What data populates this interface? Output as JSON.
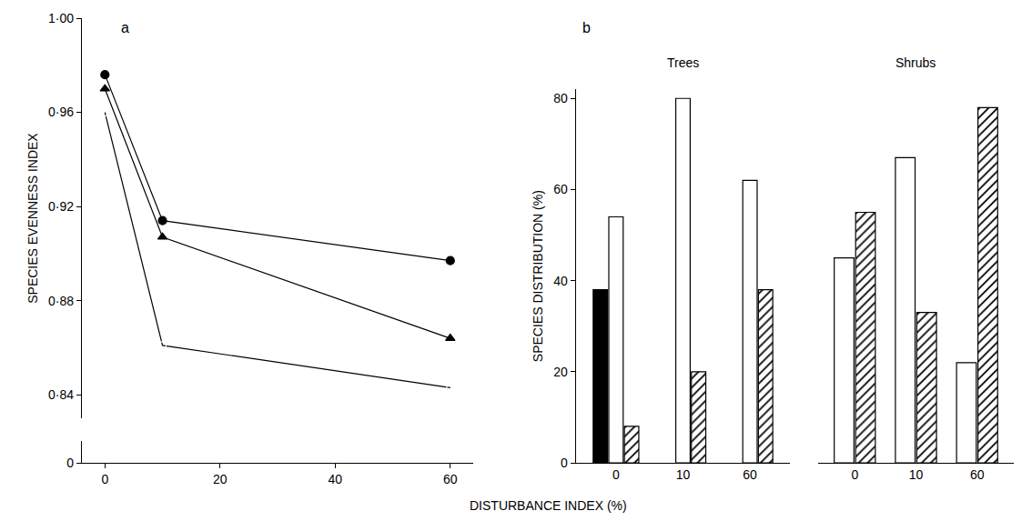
{
  "chart_data": [
    {
      "type": "line",
      "title": "a",
      "xlabel": "DISTURBANCE INDEX (%)",
      "ylabel": "SPECIES EVENNESS INDEX",
      "x": [
        0,
        10,
        60
      ],
      "series": [
        {
          "color": "#000000",
          "marker": "circle",
          "values": [
            0.976,
            0.914,
            0.897
          ]
        },
        {
          "color": "#000000",
          "marker": "triangle-up",
          "values": [
            0.97,
            0.907,
            0.864
          ]
        },
        {
          "color": "#000000",
          "marker": "circle-open",
          "values": [
            0.96,
            0.861,
            0.843
          ]
        }
      ],
      "xlim": [
        -4,
        64
      ],
      "xticks": [
        0,
        20,
        40,
        60
      ],
      "ylim": [
        0.83,
        1.0
      ],
      "yticks": [
        {
          "value": 0.84,
          "label": "0·84"
        },
        {
          "value": 0.88,
          "label": "0·88"
        },
        {
          "value": 0.92,
          "label": "0·92"
        },
        {
          "value": 0.96,
          "label": "0·96"
        },
        {
          "value": 1.0,
          "label": "1·00"
        }
      ],
      "y2lim": [
        0,
        0.004
      ],
      "y2ticks": [
        0
      ],
      "grid": false
    },
    {
      "type": "bar",
      "title": "b",
      "subtitle": "Trees",
      "ylabel": "SPECIES DISTRIBUTION (%)",
      "categories": [
        "0",
        "10",
        "60"
      ],
      "series": [
        {
          "color": "#000000",
          "marker": "solid",
          "values": [
            38,
            null,
            null
          ]
        },
        {
          "color": "#ffffff",
          "marker": "open",
          "values": [
            54,
            80,
            62
          ]
        },
        {
          "color": "#ffffff",
          "marker": "hatched",
          "values": [
            8,
            20,
            38
          ]
        }
      ],
      "ylim": [
        0,
        82
      ],
      "yticks": [
        0,
        20,
        40,
        60,
        80
      ],
      "grid": false
    },
    {
      "type": "bar",
      "subtitle": "Shrubs",
      "categories": [
        "0",
        "10",
        "60"
      ],
      "series": [
        {
          "color": "#ffffff",
          "marker": "open",
          "values": [
            45,
            67,
            22
          ]
        },
        {
          "color": "#ffffff",
          "marker": "hatched",
          "values": [
            55,
            33,
            78
          ]
        }
      ],
      "ylim": [
        0,
        82
      ],
      "tick_labels": "x",
      "grid": false
    }
  ]
}
